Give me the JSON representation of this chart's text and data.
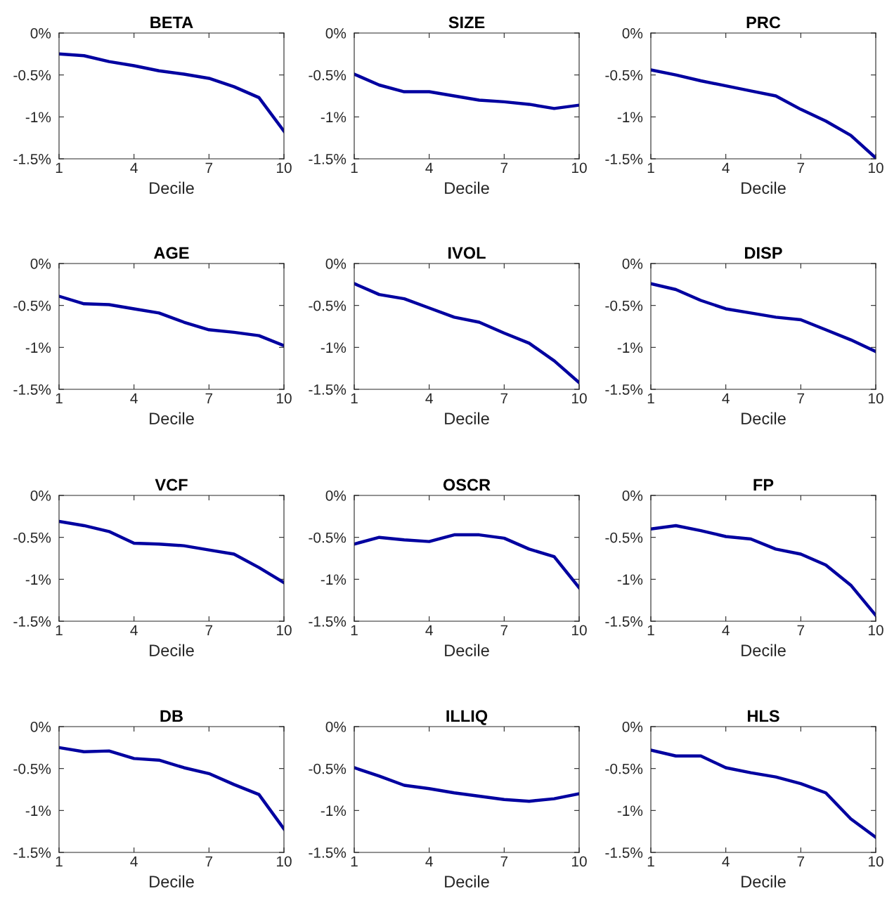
{
  "chart_data": [
    {
      "type": "line",
      "title": "BETA",
      "xlabel": "Decile",
      "x": [
        1,
        2,
        3,
        4,
        5,
        6,
        7,
        8,
        9,
        10
      ],
      "series": [
        {
          "color": "#0000a0",
          "values": [
            -0.25,
            -0.27,
            -0.34,
            -0.39,
            -0.45,
            -0.49,
            -0.54,
            -0.64,
            -0.77,
            -1.17
          ]
        }
      ],
      "xlim": [
        1,
        10
      ],
      "xticks": [
        1,
        4,
        7,
        10
      ],
      "ylim": [
        -1.5,
        0
      ],
      "yticks": [
        {
          "value": -1.5,
          "label": "-1.5%"
        },
        {
          "value": -1,
          "label": "-1%"
        },
        {
          "value": -0.5,
          "label": "-0.5%"
        },
        {
          "value": 0,
          "label": "0%"
        }
      ],
      "grid": false,
      "legend": false
    },
    {
      "type": "line",
      "title": "SIZE",
      "xlabel": "Decile",
      "x": [
        1,
        2,
        3,
        4,
        5,
        6,
        7,
        8,
        9,
        10
      ],
      "series": [
        {
          "color": "#0000a0",
          "values": [
            -0.49,
            -0.62,
            -0.7,
            -0.7,
            -0.75,
            -0.8,
            -0.82,
            -0.85,
            -0.9,
            -0.86
          ]
        }
      ],
      "xlim": [
        1,
        10
      ],
      "xticks": [
        1,
        4,
        7,
        10
      ],
      "ylim": [
        -1.5,
        0
      ],
      "yticks": [
        {
          "value": -1.5,
          "label": "-1.5%"
        },
        {
          "value": -1,
          "label": "-1%"
        },
        {
          "value": -0.5,
          "label": "-0.5%"
        },
        {
          "value": 0,
          "label": "0%"
        }
      ],
      "grid": false,
      "legend": false
    },
    {
      "type": "line",
      "title": "PRC",
      "xlabel": "Decile",
      "x": [
        1,
        2,
        3,
        4,
        5,
        6,
        7,
        8,
        9,
        10
      ],
      "series": [
        {
          "color": "#0000a0",
          "values": [
            -0.44,
            -0.5,
            -0.57,
            -0.63,
            -0.69,
            -0.75,
            -0.91,
            -1.05,
            -1.22,
            -1.49
          ]
        }
      ],
      "xlim": [
        1,
        10
      ],
      "xticks": [
        1,
        4,
        7,
        10
      ],
      "ylim": [
        -1.5,
        0
      ],
      "yticks": [
        {
          "value": -1.5,
          "label": "-1.5%"
        },
        {
          "value": -1,
          "label": "-1%"
        },
        {
          "value": -0.5,
          "label": "-0.5%"
        },
        {
          "value": 0,
          "label": "0%"
        }
      ],
      "grid": false,
      "legend": false
    },
    {
      "type": "line",
      "title": "AGE",
      "xlabel": "Decile",
      "x": [
        1,
        2,
        3,
        4,
        5,
        6,
        7,
        8,
        9,
        10
      ],
      "series": [
        {
          "color": "#0000a0",
          "values": [
            -0.39,
            -0.48,
            -0.49,
            -0.54,
            -0.59,
            -0.7,
            -0.79,
            -0.82,
            -0.86,
            -0.98
          ]
        }
      ],
      "xlim": [
        1,
        10
      ],
      "xticks": [
        1,
        4,
        7,
        10
      ],
      "ylim": [
        -1.5,
        0
      ],
      "yticks": [
        {
          "value": -1.5,
          "label": "-1.5%"
        },
        {
          "value": -1,
          "label": "-1%"
        },
        {
          "value": -0.5,
          "label": "-0.5%"
        },
        {
          "value": 0,
          "label": "0%"
        }
      ],
      "grid": false,
      "legend": false
    },
    {
      "type": "line",
      "title": "IVOL",
      "xlabel": "Decile",
      "x": [
        1,
        2,
        3,
        4,
        5,
        6,
        7,
        8,
        9,
        10
      ],
      "series": [
        {
          "color": "#0000a0",
          "values": [
            -0.24,
            -0.37,
            -0.42,
            -0.53,
            -0.64,
            -0.7,
            -0.83,
            -0.95,
            -1.16,
            -1.42
          ]
        }
      ],
      "xlim": [
        1,
        10
      ],
      "xticks": [
        1,
        4,
        7,
        10
      ],
      "ylim": [
        -1.5,
        0
      ],
      "yticks": [
        {
          "value": -1.5,
          "label": "-1.5%"
        },
        {
          "value": -1,
          "label": "-1%"
        },
        {
          "value": -0.5,
          "label": "-0.5%"
        },
        {
          "value": 0,
          "label": "0%"
        }
      ],
      "grid": false,
      "legend": false
    },
    {
      "type": "line",
      "title": "DISP",
      "xlabel": "Decile",
      "x": [
        1,
        2,
        3,
        4,
        5,
        6,
        7,
        8,
        9,
        10
      ],
      "series": [
        {
          "color": "#0000a0",
          "values": [
            -0.24,
            -0.31,
            -0.44,
            -0.54,
            -0.59,
            -0.64,
            -0.67,
            -0.79,
            -0.91,
            -1.05
          ]
        }
      ],
      "xlim": [
        1,
        10
      ],
      "xticks": [
        1,
        4,
        7,
        10
      ],
      "ylim": [
        -1.5,
        0
      ],
      "yticks": [
        {
          "value": -1.5,
          "label": "-1.5%"
        },
        {
          "value": -1,
          "label": "-1%"
        },
        {
          "value": -0.5,
          "label": "-0.5%"
        },
        {
          "value": 0,
          "label": "0%"
        }
      ],
      "grid": false,
      "legend": false
    },
    {
      "type": "line",
      "title": "VCF",
      "xlabel": "Decile",
      "x": [
        1,
        2,
        3,
        4,
        5,
        6,
        7,
        8,
        9,
        10
      ],
      "series": [
        {
          "color": "#0000a0",
          "values": [
            -0.31,
            -0.36,
            -0.43,
            -0.57,
            -0.58,
            -0.6,
            -0.65,
            -0.7,
            -0.86,
            -1.04
          ]
        }
      ],
      "xlim": [
        1,
        10
      ],
      "xticks": [
        1,
        4,
        7,
        10
      ],
      "ylim": [
        -1.5,
        0
      ],
      "yticks": [
        {
          "value": -1.5,
          "label": "-1.5%"
        },
        {
          "value": -1,
          "label": "-1%"
        },
        {
          "value": -0.5,
          "label": "-0.5%"
        },
        {
          "value": 0,
          "label": "0%"
        }
      ],
      "grid": false,
      "legend": false
    },
    {
      "type": "line",
      "title": "OSCR",
      "xlabel": "Decile",
      "x": [
        1,
        2,
        3,
        4,
        5,
        6,
        7,
        8,
        9,
        10
      ],
      "series": [
        {
          "color": "#0000a0",
          "values": [
            -0.58,
            -0.5,
            -0.53,
            -0.55,
            -0.47,
            -0.47,
            -0.51,
            -0.64,
            -0.73,
            -1.1
          ]
        }
      ],
      "xlim": [
        1,
        10
      ],
      "xticks": [
        1,
        4,
        7,
        10
      ],
      "ylim": [
        -1.5,
        0
      ],
      "yticks": [
        {
          "value": -1.5,
          "label": "-1.5%"
        },
        {
          "value": -1,
          "label": "-1%"
        },
        {
          "value": -0.5,
          "label": "-0.5%"
        },
        {
          "value": 0,
          "label": "0%"
        }
      ],
      "grid": false,
      "legend": false
    },
    {
      "type": "line",
      "title": "FP",
      "xlabel": "Decile",
      "x": [
        1,
        2,
        3,
        4,
        5,
        6,
        7,
        8,
        9,
        10
      ],
      "series": [
        {
          "color": "#0000a0",
          "values": [
            -0.4,
            -0.36,
            -0.42,
            -0.49,
            -0.52,
            -0.64,
            -0.7,
            -0.83,
            -1.07,
            -1.43
          ]
        }
      ],
      "xlim": [
        1,
        10
      ],
      "xticks": [
        1,
        4,
        7,
        10
      ],
      "ylim": [
        -1.5,
        0
      ],
      "yticks": [
        {
          "value": -1.5,
          "label": "-1.5%"
        },
        {
          "value": -1,
          "label": "-1%"
        },
        {
          "value": -0.5,
          "label": "-0.5%"
        },
        {
          "value": 0,
          "label": "0%"
        }
      ],
      "grid": false,
      "legend": false
    },
    {
      "type": "line",
      "title": "DB",
      "xlabel": "Decile",
      "x": [
        1,
        2,
        3,
        4,
        5,
        6,
        7,
        8,
        9,
        10
      ],
      "series": [
        {
          "color": "#0000a0",
          "values": [
            -0.25,
            -0.3,
            -0.29,
            -0.38,
            -0.4,
            -0.49,
            -0.56,
            -0.69,
            -0.81,
            -1.22
          ]
        }
      ],
      "xlim": [
        1,
        10
      ],
      "xticks": [
        1,
        4,
        7,
        10
      ],
      "ylim": [
        -1.5,
        0
      ],
      "yticks": [
        {
          "value": -1.5,
          "label": "-1.5%"
        },
        {
          "value": -1,
          "label": "-1%"
        },
        {
          "value": -0.5,
          "label": "-0.5%"
        },
        {
          "value": 0,
          "label": "0%"
        }
      ],
      "grid": false,
      "legend": false
    },
    {
      "type": "line",
      "title": "ILLIQ",
      "xlabel": "Decile",
      "x": [
        1,
        2,
        3,
        4,
        5,
        6,
        7,
        8,
        9,
        10
      ],
      "series": [
        {
          "color": "#0000a0",
          "values": [
            -0.49,
            -0.59,
            -0.7,
            -0.74,
            -0.79,
            -0.83,
            -0.87,
            -0.89,
            -0.86,
            -0.8
          ]
        }
      ],
      "xlim": [
        1,
        10
      ],
      "xticks": [
        1,
        4,
        7,
        10
      ],
      "ylim": [
        -1.5,
        0
      ],
      "yticks": [
        {
          "value": -1.5,
          "label": "-1.5%"
        },
        {
          "value": -1,
          "label": "-1%"
        },
        {
          "value": -0.5,
          "label": "-0.5%"
        },
        {
          "value": 0,
          "label": "0%"
        }
      ],
      "grid": false,
      "legend": false
    },
    {
      "type": "line",
      "title": "HLS",
      "xlabel": "Decile",
      "x": [
        1,
        2,
        3,
        4,
        5,
        6,
        7,
        8,
        9,
        10
      ],
      "series": [
        {
          "color": "#0000a0",
          "values": [
            -0.28,
            -0.35,
            -0.35,
            -0.49,
            -0.55,
            -0.6,
            -0.68,
            -0.79,
            -1.1,
            -1.32
          ]
        }
      ],
      "xlim": [
        1,
        10
      ],
      "xticks": [
        1,
        4,
        7,
        10
      ],
      "ylim": [
        -1.5,
        0
      ],
      "yticks": [
        {
          "value": -1.5,
          "label": "-1.5%"
        },
        {
          "value": -1,
          "label": "-1%"
        },
        {
          "value": -0.5,
          "label": "-0.5%"
        },
        {
          "value": 0,
          "label": "0%"
        }
      ],
      "grid": false,
      "legend": false
    }
  ]
}
